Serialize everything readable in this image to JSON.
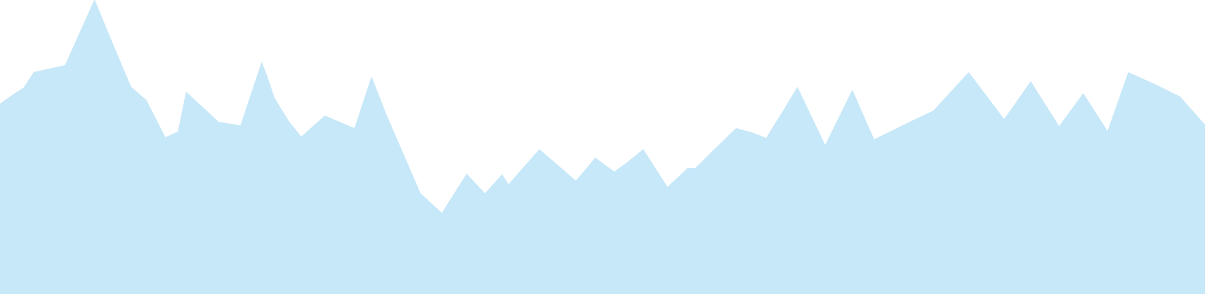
{
  "graphic": {
    "name": "mountain-silhouette",
    "fill_color": "#c7e8f8",
    "background_color": "#ffffff"
  }
}
